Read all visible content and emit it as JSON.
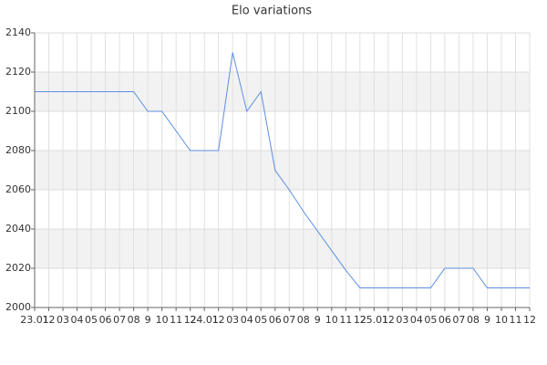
{
  "chart_data": {
    "type": "line",
    "title": "Elo variations",
    "categories": [
      "23.01",
      "12",
      "03",
      "04",
      "05",
      "06",
      "07",
      "08",
      "9",
      "10",
      "11",
      "12",
      "24.01",
      "12",
      "03",
      "04",
      "05",
      "06",
      "07",
      "08",
      "9",
      "10",
      "11",
      "12",
      "25.01",
      "12",
      "03",
      "04",
      "05",
      "06",
      "07",
      "08",
      "9",
      "10",
      "11",
      "12"
    ],
    "values": [
      2110,
      2110,
      2110,
      2110,
      2110,
      2110,
      2110,
      2110,
      2100,
      2100,
      2090,
      2080,
      2080,
      2080,
      2130,
      2100,
      2110,
      2070,
      2060,
      2049,
      2039,
      2029,
      2019,
      2010,
      2010,
      2010,
      2010,
      2010,
      2010,
      2020,
      2020,
      2020,
      2010,
      2010,
      2010,
      2010
    ],
    "color": "#5b8fe0",
    "ylim": [
      2000,
      2140
    ],
    "yticks": [
      2000,
      2020,
      2040,
      2060,
      2080,
      2100,
      2120,
      2140
    ],
    "grid": true
  }
}
